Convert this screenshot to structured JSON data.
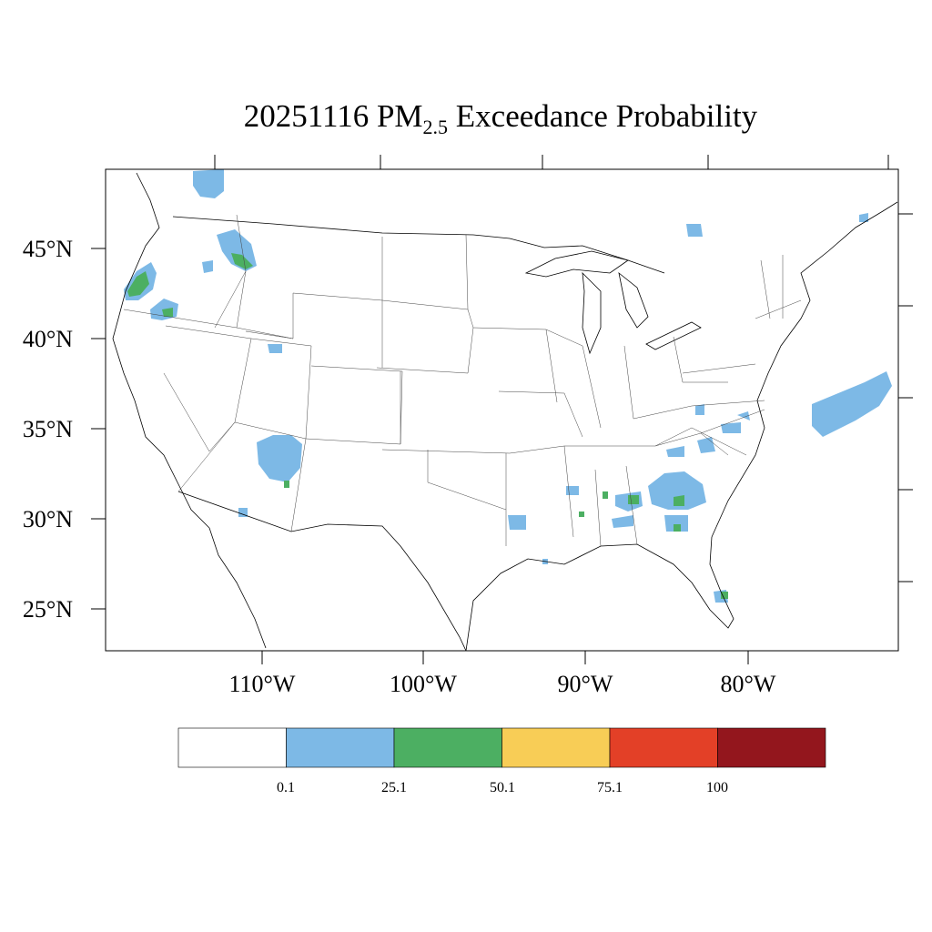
{
  "title": {
    "date": "20251116",
    "pm_base": "PM",
    "pm_sub": "2.5",
    "suffix": "Exceedance Probability"
  },
  "map": {
    "lat_labels": [
      "45°N",
      "40°N",
      "35°N",
      "30°N",
      "25°N"
    ],
    "lon_labels": [
      "110°W",
      "100°W",
      "90°W",
      "80°W"
    ],
    "region": "Continental United States"
  },
  "legend": {
    "colors": [
      "#ffffff",
      "#7db9e6",
      "#4caf62",
      "#f8cd56",
      "#e34027",
      "#93161d"
    ],
    "ticks": [
      "0.1",
      "25.1",
      "50.1",
      "75.1",
      "100"
    ]
  },
  "colors": {
    "prob_low": "#7db9e6",
    "prob_mid": "#4caf62"
  }
}
